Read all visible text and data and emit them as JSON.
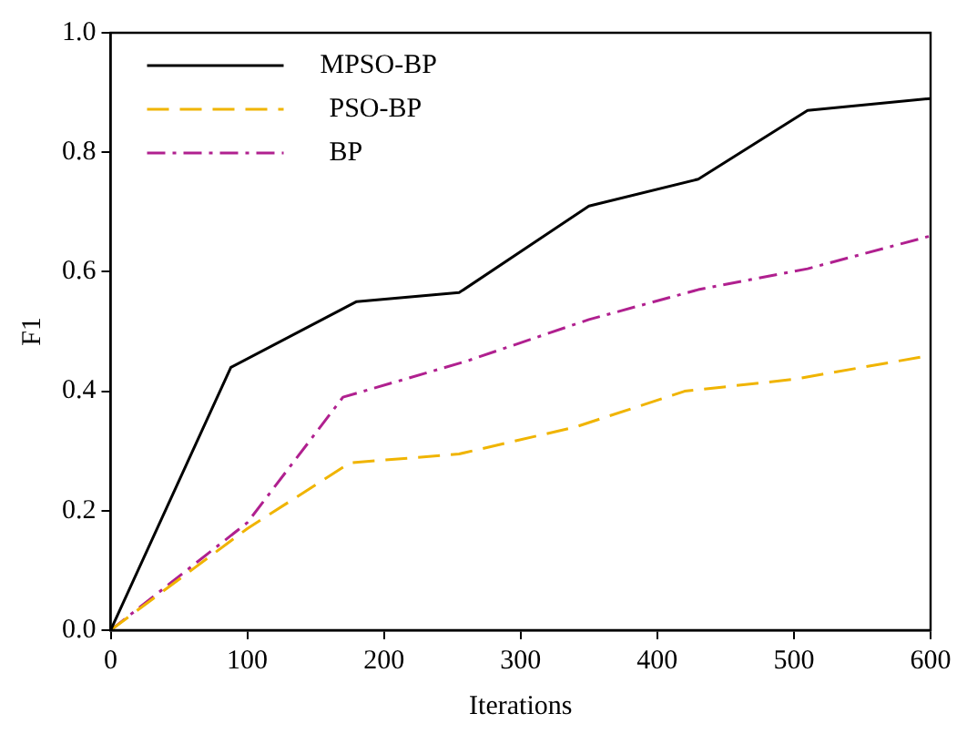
{
  "chart_data": {
    "type": "line",
    "xlabel": "Iterations",
    "ylabel": "F1",
    "xlim": [
      0,
      600
    ],
    "xticks": [
      0,
      100,
      200,
      300,
      400,
      500,
      600
    ],
    "ylim": [
      0,
      1
    ],
    "yticks": [
      {
        "value": 0,
        "label": "0.0"
      },
      {
        "value": 0.2,
        "label": "0.2"
      },
      {
        "value": 0.4,
        "label": "0.4"
      },
      {
        "value": 0.6,
        "label": "0.6"
      },
      {
        "value": 0.8,
        "label": "0.8"
      },
      {
        "value": 1,
        "label": "1.0"
      }
    ],
    "grid": false,
    "legend": "top left",
    "marker": "none",
    "series": [
      {
        "name": "MPSO-BP",
        "color": "#000000",
        "line_style": "solid",
        "x": [
          0,
          88,
          180,
          255,
          350,
          430,
          510,
          600
        ],
        "values": [
          0,
          0.44,
          0.55,
          0.565,
          0.71,
          0.755,
          0.87,
          0.89
        ]
      },
      {
        "name": "PSO-BP",
        "color": "#f0b400",
        "line_style": "dashed",
        "x": [
          0,
          100,
          175,
          255,
          340,
          420,
          500,
          600
        ],
        "values": [
          0,
          0.17,
          0.28,
          0.295,
          0.34,
          0.4,
          0.42,
          0.46
        ]
      },
      {
        "name": "BP",
        "color": "#b0208f",
        "line_style": "dashdot",
        "x": [
          0,
          100,
          170,
          260,
          350,
          430,
          510,
          600
        ],
        "values": [
          0,
          0.18,
          0.39,
          0.45,
          0.52,
          0.57,
          0.605,
          0.66
        ]
      }
    ]
  }
}
